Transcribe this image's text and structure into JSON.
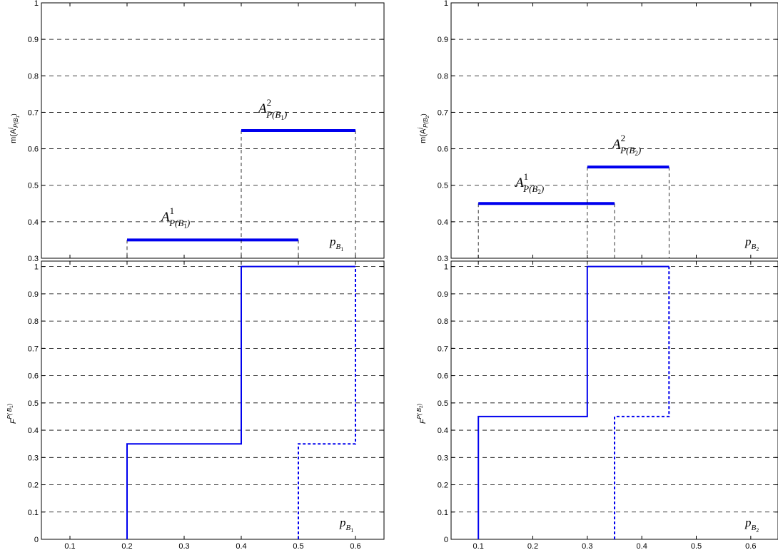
{
  "colors": {
    "series": "#0000ee",
    "axis": "#000000",
    "grid": "#000000"
  },
  "chart_data": [
    {
      "type": "line",
      "panel": "top-left",
      "xlim": [
        0.05,
        0.65
      ],
      "ylim": [
        0.3,
        1.0
      ],
      "xticks": [
        "0.1",
        "0.2",
        "0.3",
        "0.4",
        "0.5",
        "0.6"
      ],
      "yticks": [
        "0.3",
        "0.4",
        "0.5",
        "0.6",
        "0.7",
        "0.8",
        "0.9",
        "1"
      ],
      "grid": "horizontal-dashed",
      "ylabel": {
        "main": "m(A",
        "sup": "j",
        "sub": "P(B",
        "subsub": "1",
        "close": ")"
      },
      "xlabel": {
        "main": "p",
        "sub": "B",
        "subsub": "1"
      },
      "segments": [
        {
          "label": "A¹ P(B₁)",
          "x": [
            0.2,
            0.5
          ],
          "y": 0.35,
          "annotation": {
            "main": "A",
            "sup": "1",
            "sub": "P(B",
            "subsub": "1",
            "close": ")"
          }
        },
        {
          "label": "A² P(B₁)",
          "x": [
            0.4,
            0.6
          ],
          "y": 0.65,
          "annotation": {
            "main": "A",
            "sup": "2",
            "sub": "P(B",
            "subsub": "1",
            "close": ")"
          }
        }
      ]
    },
    {
      "type": "line",
      "panel": "top-right",
      "xlim": [
        0.05,
        0.65
      ],
      "ylim": [
        0.3,
        1.0
      ],
      "xticks": [
        "0.1",
        "0.2",
        "0.3",
        "0.4",
        "0.5",
        "0.6"
      ],
      "yticks": [
        "0.3",
        "0.4",
        "0.5",
        "0.6",
        "0.7",
        "0.8",
        "0.9",
        "1"
      ],
      "grid": "horizontal-dashed",
      "ylabel": {
        "main": "m(A",
        "sup": "j",
        "sub": "P(B",
        "subsub": "2",
        "close": ")"
      },
      "xlabel": {
        "main": "p",
        "sub": "B",
        "subsub": "2"
      },
      "segments": [
        {
          "label": "A¹ P(B₂)",
          "x": [
            0.1,
            0.35
          ],
          "y": 0.45,
          "annotation": {
            "main": "A",
            "sup": "1",
            "sub": "P(B",
            "subsub": "2",
            "close": ")"
          }
        },
        {
          "label": "A² P(B₂)",
          "x": [
            0.3,
            0.45
          ],
          "y": 0.55,
          "annotation": {
            "main": "A",
            "sup": "2",
            "sub": "P(B",
            "subsub": "2",
            "close": ")"
          }
        }
      ]
    },
    {
      "type": "line",
      "panel": "bottom-left",
      "xlim": [
        0.05,
        0.65
      ],
      "ylim": [
        0,
        1.02
      ],
      "xticks": [
        "0.1",
        "0.2",
        "0.3",
        "0.4",
        "0.5",
        "0.6"
      ],
      "yticks": [
        "0",
        "0.1",
        "0.2",
        "0.3",
        "0.4",
        "0.5",
        "0.6",
        "0.7",
        "0.8",
        "0.9",
        "1"
      ],
      "grid": "horizontal-dashed",
      "ylabel": {
        "main": "F",
        "sup": "P( B",
        "supsub": "1",
        "supclose": ")"
      },
      "xlabel": {
        "main": "p",
        "sub": "B",
        "subsub": "1"
      },
      "series": [
        {
          "style": "solid",
          "x": [
            0.2,
            0.2,
            0.4,
            0.4,
            0.6
          ],
          "y": [
            0,
            0.35,
            0.35,
            1,
            1
          ]
        },
        {
          "style": "dashed",
          "x": [
            0.5,
            0.5,
            0.6,
            0.6
          ],
          "y": [
            0,
            0.35,
            0.35,
            1
          ]
        }
      ]
    },
    {
      "type": "line",
      "panel": "bottom-right",
      "xlim": [
        0.05,
        0.65
      ],
      "ylim": [
        0,
        1.02
      ],
      "xticks": [
        "0.1",
        "0.2",
        "0.3",
        "0.4",
        "0.5",
        "0.6"
      ],
      "yticks": [
        "0",
        "0.1",
        "0.2",
        "0.3",
        "0.4",
        "0.5",
        "0.6",
        "0.7",
        "0.8",
        "0.9",
        "1"
      ],
      "grid": "horizontal-dashed",
      "ylabel": {
        "main": "F",
        "sup": "P( B",
        "supsub": "2",
        "supclose": ")"
      },
      "xlabel": {
        "main": "p",
        "sub": "B",
        "subsub": "2"
      },
      "series": [
        {
          "style": "solid",
          "x": [
            0.1,
            0.1,
            0.3,
            0.3,
            0.45
          ],
          "y": [
            0,
            0.45,
            0.45,
            1,
            1
          ]
        },
        {
          "style": "dashed",
          "x": [
            0.35,
            0.35,
            0.45,
            0.45
          ],
          "y": [
            0,
            0.45,
            0.45,
            1
          ]
        }
      ]
    }
  ]
}
